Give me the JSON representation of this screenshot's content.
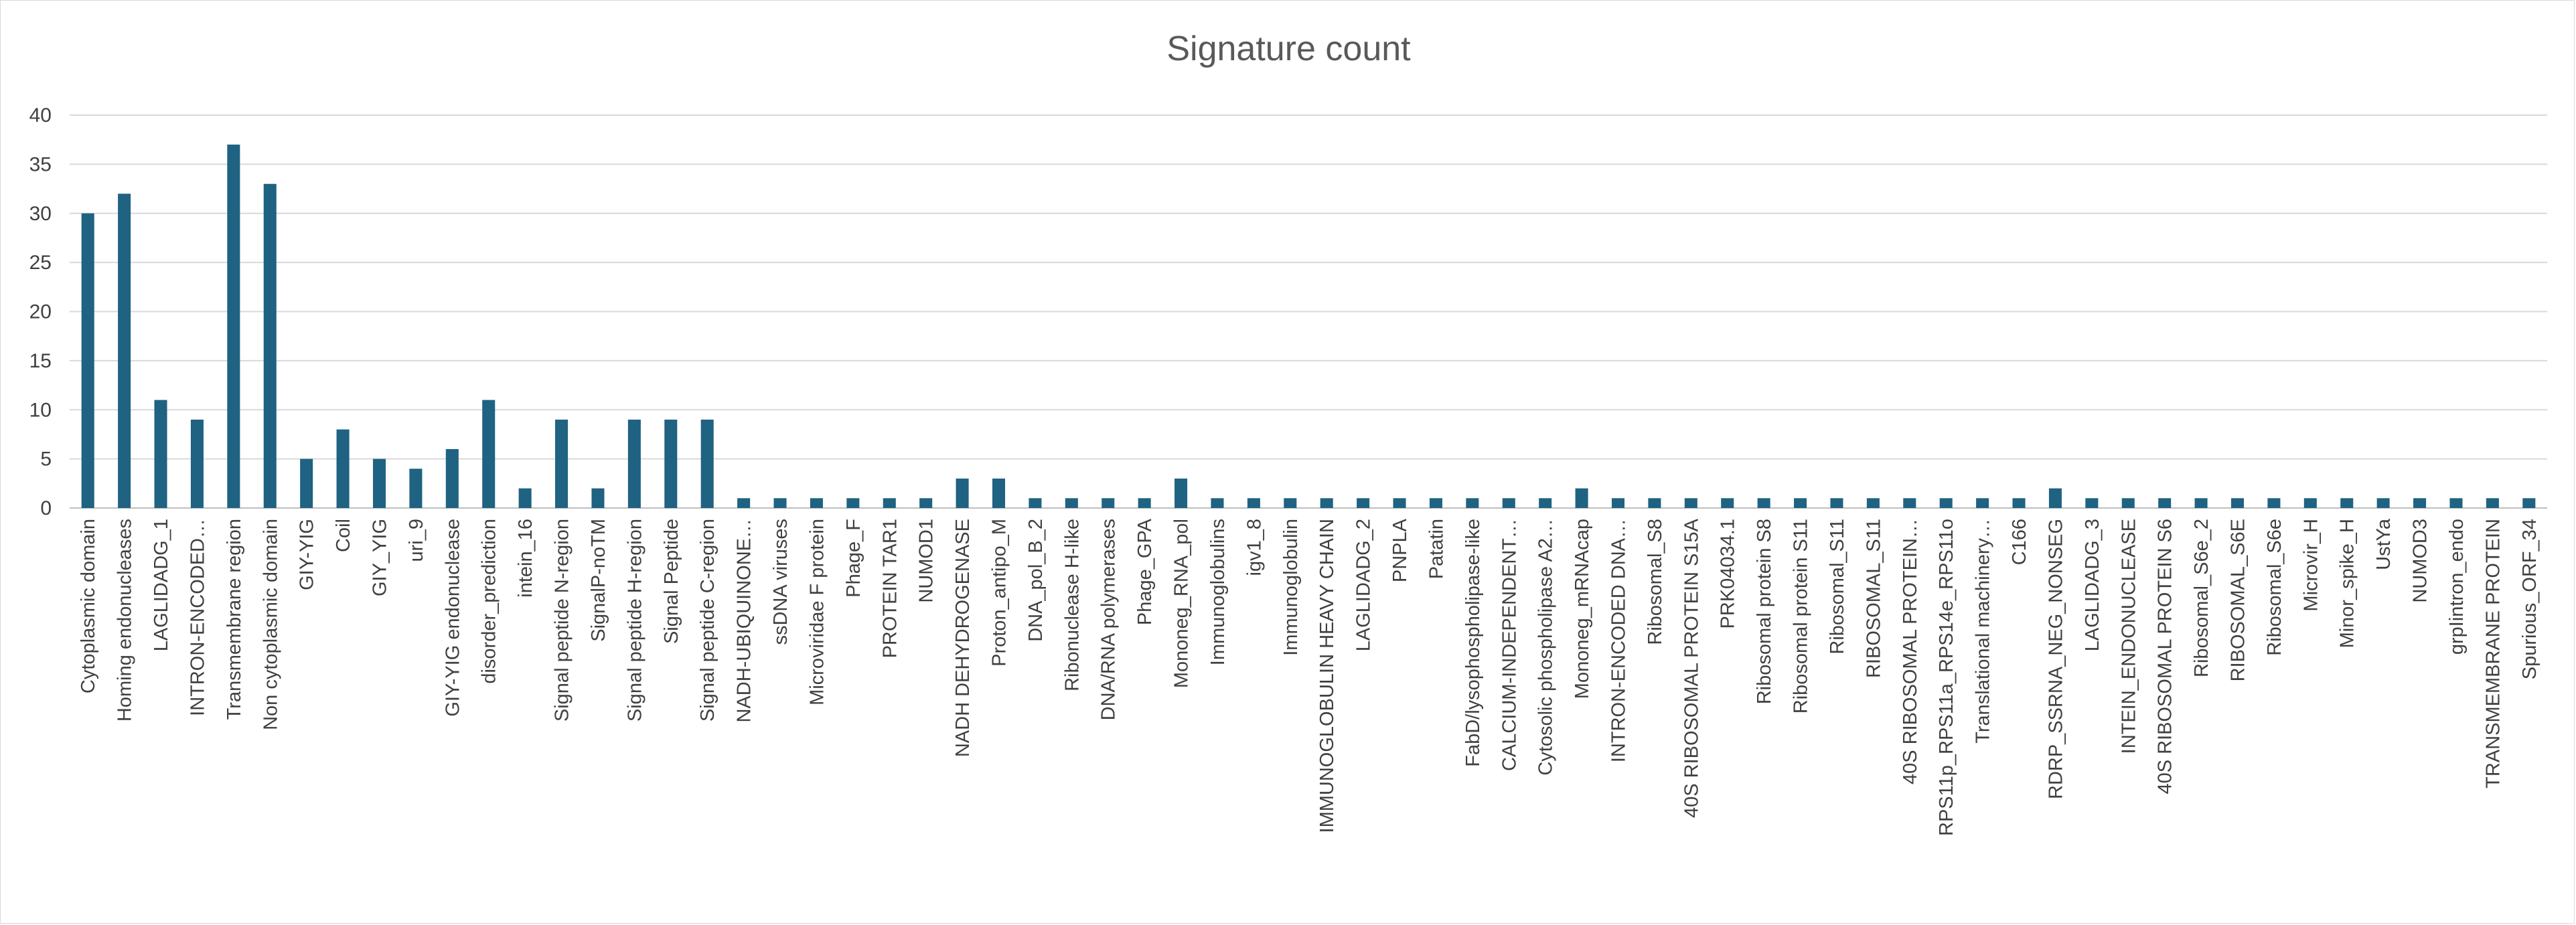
{
  "chart_data": {
    "type": "bar",
    "title": "Signature count",
    "xlabel": "",
    "ylabel": "",
    "ylim": [
      0,
      40
    ],
    "yticks": [
      0,
      5,
      10,
      15,
      20,
      25,
      30,
      35,
      40
    ],
    "grid": true,
    "legend": "none",
    "bar_color": "#1f6282",
    "categories": [
      "Cytoplasmic domain",
      "Homing endonucleases",
      "LAGLIDADG_1",
      "INTRON-ENCODED…",
      "Transmembrane region",
      "Non cytoplasmic domain",
      "GIY-YIG",
      "Coil",
      "GIY_YIG",
      "uri_9",
      "GIY-YIG endonuclease",
      "disorder_prediction",
      "intein_16",
      "Signal peptide N-region",
      "SignalP-noTM",
      "Signal peptide H-region",
      "Signal Peptide",
      "Signal peptide C-region",
      "NADH-UBIQUINONE…",
      "ssDNA viruses",
      "Microviridae F protein",
      "Phage_F",
      "PROTEIN TAR1",
      "NUMOD1",
      "NADH DEHYDROGENASE",
      "Proton_antipo_M",
      "DNA_pol_B_2",
      "Ribonuclease H-like",
      "DNA/RNA polymerases",
      "Phage_GPA",
      "Mononeg_RNA_pol",
      "Immunoglobulins",
      "igv1_8",
      "Immunoglobulin",
      "IMMUNOGLOBULIN HEAVY CHAIN",
      "LAGLIDADG_2",
      "PNPLA",
      "Patatin",
      "FabD/lysophospholipase-like",
      "CALCIUM-INDEPENDENT…",
      "Cytosolic phospholipase A2…",
      "Mononeg_mRNAcap",
      "INTRON-ENCODED DNA…",
      "Ribosomal_S8",
      "40S RIBOSOMAL PROTEIN S15A",
      "PRK04034.1",
      "Ribosomal protein S8",
      "Ribosomal protein S11",
      "Ribosomal_S11",
      "RIBOSOMAL_S11",
      "40S RIBOSOMAL PROTEIN…",
      "RPS11p_RPS11a_RPS14e_RPS11o",
      "Translational machinery…",
      "C166",
      "RDRP_SSRNA_NEG_NONSEG",
      "LAGLIDADG_3",
      "INTEIN_ENDONUCLEASE",
      "40S RIBOSOMAL PROTEIN S6",
      "Ribosomal_S6e_2",
      "RIBOSOMAL_S6E",
      "Ribosomal_S6e",
      "Microvir_H",
      "Minor_spike_H",
      "UstYa",
      "NUMOD3",
      "grpIintron_endo",
      "TRANSMEMBRANE PROTEIN",
      "Spurious_ORF_34"
    ],
    "values": [
      30,
      32,
      11,
      9,
      37,
      33,
      5,
      8,
      5,
      4,
      6,
      11,
      2,
      9,
      2,
      9,
      9,
      9,
      1,
      1,
      1,
      1,
      1,
      1,
      3,
      3,
      1,
      1,
      1,
      1,
      3,
      1,
      1,
      1,
      1,
      1,
      1,
      1,
      1,
      1,
      1,
      2,
      1,
      1,
      1,
      1,
      1,
      1,
      1,
      1,
      1,
      1,
      1,
      1,
      2,
      1,
      1,
      1,
      1,
      1,
      1,
      1,
      1,
      1,
      1,
      1,
      1,
      1
    ]
  }
}
